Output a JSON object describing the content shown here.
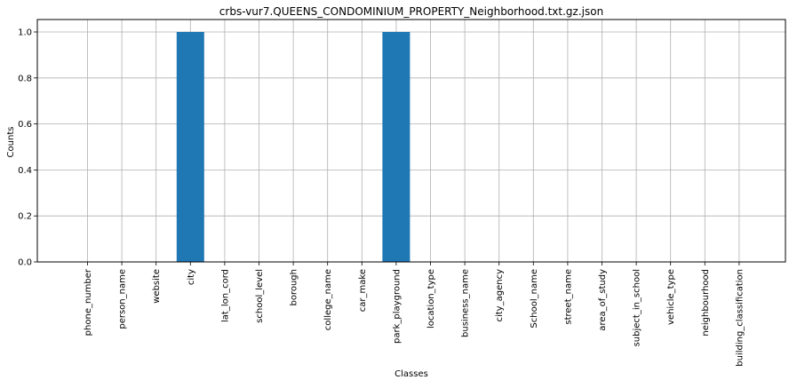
{
  "chart_data": {
    "type": "bar",
    "title": "crbs-vur7.QUEENS_CONDOMINIUM_PROPERTY_Neighborhood.txt.gz.json",
    "xlabel": "Classes",
    "ylabel": "Counts",
    "categories": [
      "phone_number",
      "person_name",
      "website",
      "city",
      "lat_lon_cord",
      "school_level",
      "borough",
      "college_name",
      "car_make",
      "park_playground",
      "location_type",
      "business_name",
      "city_agency",
      "School_name",
      "street_name",
      "area_of_study",
      "subject_in_school",
      "vehicle_type",
      "neighbourhood",
      "building_classification"
    ],
    "values": [
      0,
      0,
      0,
      1,
      0,
      0,
      0,
      0,
      0,
      1,
      0,
      0,
      0,
      0,
      0,
      0,
      0,
      0,
      0,
      0
    ],
    "ylim": [
      0,
      1.0
    ],
    "yticks": [
      "0.0",
      "0.2",
      "0.4",
      "0.6",
      "0.8",
      "1.0"
    ],
    "grid": true,
    "bar_color": "#1f77b4"
  }
}
